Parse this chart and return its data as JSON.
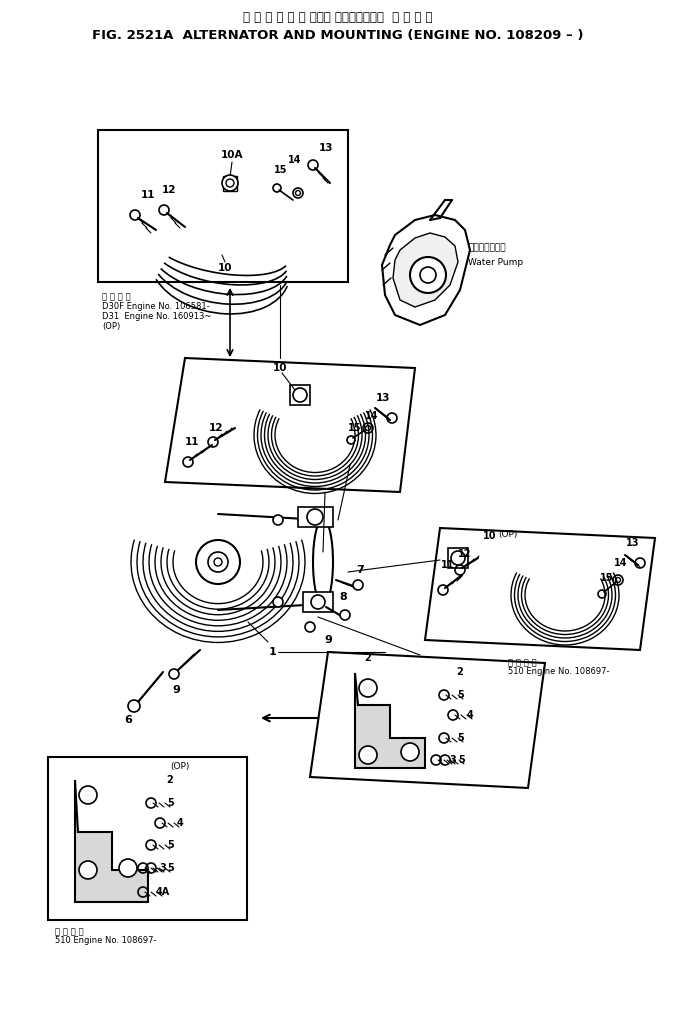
{
  "title_japanese": "オ ル タ ネ ー タ および マウンティング  通 用 号 機",
  "title_english": "FIG. 2521A  ALTERNATOR AND MOUNTING (ENGINE NO. 108209 – )",
  "bg_color": "#ffffff",
  "line_color": "#000000",
  "fig_width": 6.77,
  "fig_height": 10.14,
  "dpi": 100,
  "note1_lines": [
    "通 用 号 機",
    "D30F Engine No. 106581-",
    "D31  Engine No. 160913~",
    "(OP)"
  ],
  "note2_lines": [
    "通 用 号 機",
    "510 Engine No. 108697-"
  ],
  "note3_lines": [
    "通 用 号 機",
    "510 Engine No. 108697-"
  ],
  "water_pump_jp": "ウォータポンプ",
  "water_pump_en": "Water Pump"
}
